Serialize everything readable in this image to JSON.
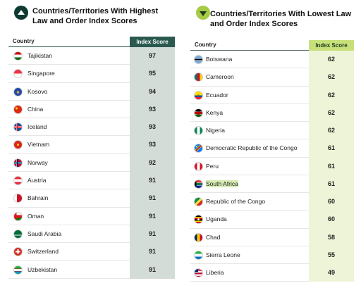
{
  "left": {
    "title": "Countries/Territories With Highest Law and Order Index Scores",
    "col_country": "Country",
    "col_score": "Index Score",
    "rows": [
      {
        "country": "Tajikistan",
        "score": "97",
        "flag": "tajikistan-flag-icon"
      },
      {
        "country": "Singapore",
        "score": "95",
        "flag": "singapore-flag-icon"
      },
      {
        "country": "Kosovo",
        "score": "94",
        "flag": "kosovo-flag-icon"
      },
      {
        "country": "China",
        "score": "93",
        "flag": "china-flag-icon"
      },
      {
        "country": "Iceland",
        "score": "93",
        "flag": "iceland-flag-icon"
      },
      {
        "country": "Vietnam",
        "score": "93",
        "flag": "vietnam-flag-icon"
      },
      {
        "country": "Norway",
        "score": "92",
        "flag": "norway-flag-icon"
      },
      {
        "country": "Austria",
        "score": "91",
        "flag": "austria-flag-icon"
      },
      {
        "country": "Bahrain",
        "score": "91",
        "flag": "bahrain-flag-icon"
      },
      {
        "country": "Oman",
        "score": "91",
        "flag": "oman-flag-icon"
      },
      {
        "country": "Saudi Arabia",
        "score": "91",
        "flag": "saudi-arabia-flag-icon"
      },
      {
        "country": "Switzerland",
        "score": "91",
        "flag": "switzerland-flag-icon"
      },
      {
        "country": "Uzbekistan",
        "score": "91",
        "flag": "uzbekistan-flag-icon"
      }
    ]
  },
  "right": {
    "title": "Countries/Territories With Lowest Law and Order Index Scores",
    "col_country": "Country",
    "col_score": "Index Score",
    "highlighted_country": "South Africa",
    "rows": [
      {
        "country": "Botswana",
        "score": "62",
        "flag": "botswana-flag-icon"
      },
      {
        "country": "Cameroon",
        "score": "62",
        "flag": "cameroon-flag-icon"
      },
      {
        "country": "Ecuador",
        "score": "62",
        "flag": "ecuador-flag-icon"
      },
      {
        "country": "Kenya",
        "score": "62",
        "flag": "kenya-flag-icon"
      },
      {
        "country": "Nigeria",
        "score": "62",
        "flag": "nigeria-flag-icon"
      },
      {
        "country": "Democratic Republic of the Congo",
        "score": "61",
        "flag": "drc-flag-icon"
      },
      {
        "country": "Peru",
        "score": "61",
        "flag": "peru-flag-icon"
      },
      {
        "country": "South Africa",
        "score": "61",
        "flag": "south-africa-flag-icon"
      },
      {
        "country": "Republic of the Congo",
        "score": "60",
        "flag": "congo-flag-icon"
      },
      {
        "country": "Uganda",
        "score": "60",
        "flag": "uganda-flag-icon"
      },
      {
        "country": "Chad",
        "score": "58",
        "flag": "chad-flag-icon"
      },
      {
        "country": "Sierra Leone",
        "score": "55",
        "flag": "sierra-leone-flag-icon"
      },
      {
        "country": "Liberia",
        "score": "49",
        "flag": "liberia-flag-icon"
      }
    ]
  },
  "colors": {
    "left_header": "#2a5a4f",
    "left_score_bg": "#d4dcd8",
    "right_header": "#c7e07a",
    "right_score_bg": "#eef4d7",
    "highlight": "#d7ecb3"
  }
}
